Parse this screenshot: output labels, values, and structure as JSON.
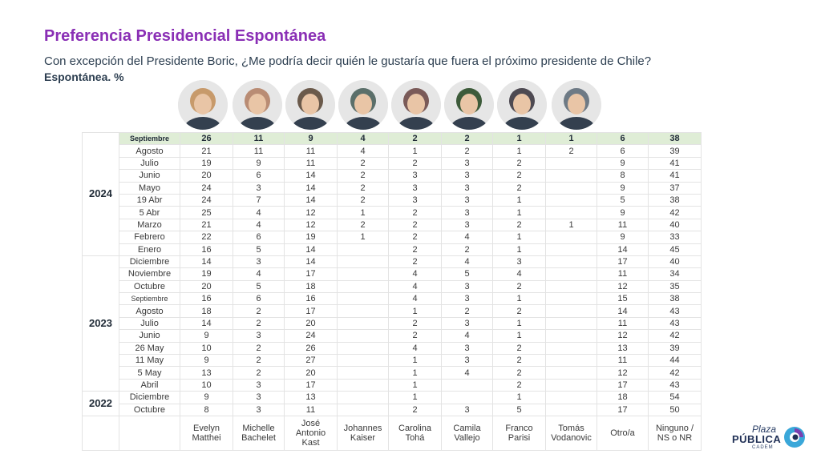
{
  "title": "Preferencia Presidencial Espontánea",
  "subtitle": "Con excepción del Presidente Boric, ¿Me podría decir quién le gustaría que fuera el próximo presidente de Chile?",
  "subtitle2": "Espontánea. %",
  "logo": {
    "line1": "Plaza",
    "line2": "PÚBLICA",
    "line3": "CADEM"
  },
  "candidates": [
    {
      "name": "Evelyn\nMatthei",
      "color": "#c79a6b"
    },
    {
      "name": "Michelle\nBachelet",
      "color": "#b98c74"
    },
    {
      "name": "José\nAntonio\nKast",
      "color": "#6b5a4b"
    },
    {
      "name": "Johannes\nKaiser",
      "color": "#5b6f6a"
    },
    {
      "name": "Carolina\nTohá",
      "color": "#7a5a58"
    },
    {
      "name": "Camila\nVallejo",
      "color": "#3d5b3a"
    },
    {
      "name": "Franco\nParisi",
      "color": "#4e4a52"
    },
    {
      "name": "Tomás\nVodanovic",
      "color": "#6e7a85"
    },
    {
      "name": "Otro/a"
    },
    {
      "name": "Ninguno /\nNS o NR"
    }
  ],
  "chart_data": {
    "type": "table",
    "columns": [
      "Evelyn Matthei",
      "Michelle Bachelet",
      "José Antonio Kast",
      "Johannes Kaiser",
      "Carolina Tohá",
      "Camila Vallejo",
      "Franco Parisi",
      "Tomás Vodanovic",
      "Otro/a",
      "Ninguno / NS o NR"
    ],
    "groups": [
      {
        "year": "2024",
        "rows": [
          {
            "date": "Septiembre",
            "values": [
              "26",
              "11",
              "9",
              "4",
              "2",
              "2",
              "1",
              "1",
              "6",
              "38"
            ]
          },
          {
            "date": "Agosto",
            "values": [
              "21",
              "11",
              "11",
              "4",
              "1",
              "2",
              "1",
              "2",
              "6",
              "39"
            ]
          },
          {
            "date": "Julio",
            "values": [
              "19",
              "9",
              "11",
              "2",
              "2",
              "3",
              "2",
              "",
              "9",
              "41"
            ]
          },
          {
            "date": "Junio",
            "values": [
              "20",
              "6",
              "14",
              "2",
              "3",
              "3",
              "2",
              "",
              "8",
              "41"
            ]
          },
          {
            "date": "Mayo",
            "values": [
              "24",
              "3",
              "14",
              "2",
              "3",
              "3",
              "2",
              "",
              "9",
              "37"
            ]
          },
          {
            "date": "19 Abr",
            "values": [
              "24",
              "7",
              "14",
              "2",
              "3",
              "3",
              "1",
              "",
              "5",
              "38"
            ]
          },
          {
            "date": "5 Abr",
            "values": [
              "25",
              "4",
              "12",
              "1",
              "2",
              "3",
              "1",
              "",
              "9",
              "42"
            ]
          },
          {
            "date": "Marzo",
            "values": [
              "21",
              "4",
              "12",
              "2",
              "2",
              "3",
              "2",
              "1",
              "11",
              "40"
            ]
          },
          {
            "date": "Febrero",
            "values": [
              "22",
              "6",
              "19",
              "1",
              "2",
              "4",
              "1",
              "",
              "9",
              "33"
            ]
          },
          {
            "date": "Enero",
            "values": [
              "16",
              "5",
              "14",
              "",
              "2",
              "2",
              "1",
              "",
              "14",
              "45"
            ]
          }
        ]
      },
      {
        "year": "2023",
        "rows": [
          {
            "date": "Diciembre",
            "values": [
              "14",
              "3",
              "14",
              "",
              "2",
              "4",
              "3",
              "",
              "17",
              "40"
            ]
          },
          {
            "date": "Noviembre",
            "values": [
              "19",
              "4",
              "17",
              "",
              "4",
              "5",
              "4",
              "",
              "11",
              "34"
            ]
          },
          {
            "date": "Octubre",
            "values": [
              "20",
              "5",
              "18",
              "",
              "4",
              "3",
              "2",
              "",
              "12",
              "35"
            ]
          },
          {
            "date": "Septiembre",
            "values": [
              "16",
              "6",
              "16",
              "",
              "4",
              "3",
              "1",
              "",
              "15",
              "38"
            ]
          },
          {
            "date": "Agosto",
            "values": [
              "18",
              "2",
              "17",
              "",
              "1",
              "2",
              "2",
              "",
              "14",
              "43"
            ]
          },
          {
            "date": "Julio",
            "values": [
              "14",
              "2",
              "20",
              "",
              "2",
              "3",
              "1",
              "",
              "11",
              "43"
            ]
          },
          {
            "date": "Junio",
            "values": [
              "9",
              "3",
              "24",
              "",
              "2",
              "4",
              "1",
              "",
              "12",
              "42"
            ]
          },
          {
            "date": "26 May",
            "values": [
              "10",
              "2",
              "26",
              "",
              "4",
              "3",
              "2",
              "",
              "13",
              "39"
            ]
          },
          {
            "date": "11 May",
            "values": [
              "9",
              "2",
              "27",
              "",
              "1",
              "3",
              "2",
              "",
              "11",
              "44"
            ]
          },
          {
            "date": "5 May",
            "values": [
              "13",
              "2",
              "20",
              "",
              "1",
              "4",
              "2",
              "",
              "12",
              "42"
            ]
          },
          {
            "date": "Abril",
            "values": [
              "10",
              "3",
              "17",
              "",
              "1",
              "",
              "2",
              "",
              "17",
              "43"
            ]
          }
        ]
      },
      {
        "year": "2022",
        "rows": [
          {
            "date": "Diciembre",
            "values": [
              "9",
              "3",
              "13",
              "",
              "1",
              "",
              "1",
              "",
              "18",
              "54"
            ]
          },
          {
            "date": "Octubre",
            "values": [
              "8",
              "3",
              "11",
              "",
              "2",
              "3",
              "5",
              "",
              "17",
              "50"
            ]
          }
        ]
      }
    ]
  }
}
